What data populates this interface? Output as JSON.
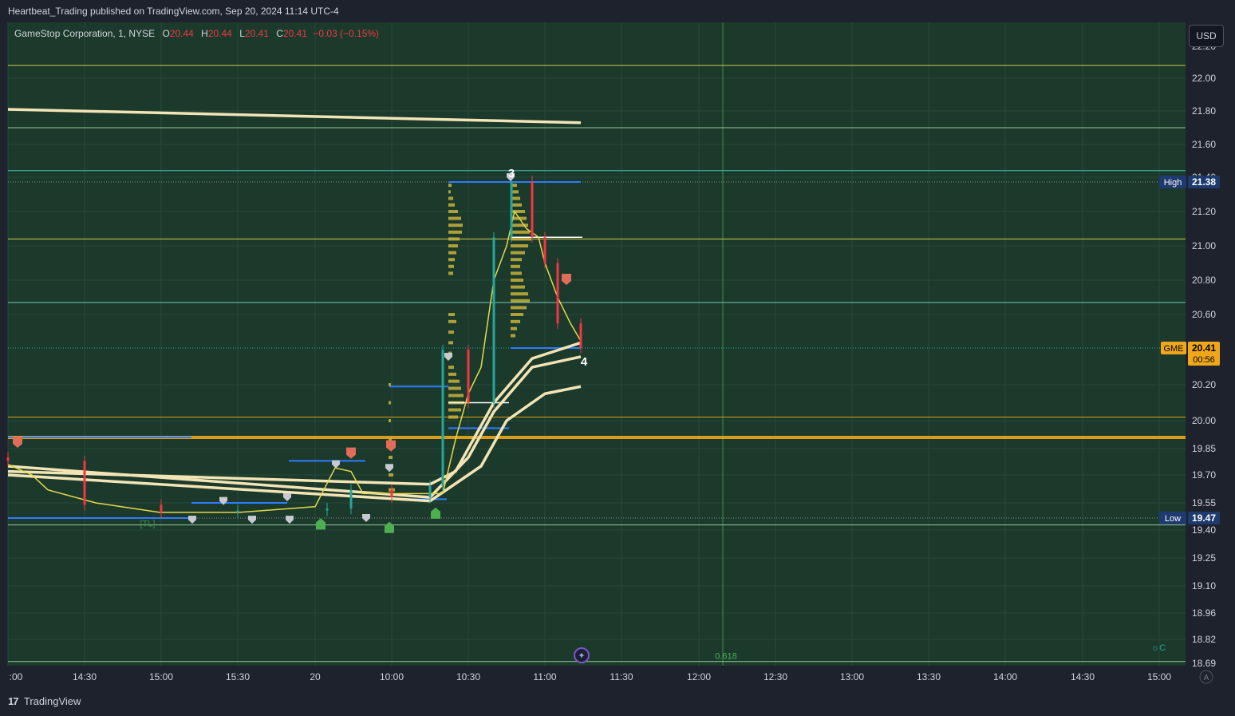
{
  "header": {
    "published_text": "Heartbeat_Trading published on TradingView.com, Sep 20, 2024 11:14 UTC-4"
  },
  "legend": {
    "symbol": "GameStop Corporation, 1, NYSE",
    "open_label": "O",
    "open": "20.44",
    "high_label": "H",
    "high": "20.44",
    "low_label": "L",
    "low": "20.41",
    "close_label": "C",
    "close": "20.41",
    "change": "−0.03 (−0.15%)"
  },
  "currency_button": "USD",
  "footer": {
    "brand": "TradingView"
  },
  "colors": {
    "background": "#1c3a2c",
    "up": "#26a69a",
    "down": "#f23645",
    "yellow": "#e5d84a",
    "cream": "#f3e4b5",
    "orange": "#f0a81a",
    "blue": "#2962ff",
    "volume_profile": "#c8b33c"
  },
  "chart_data": {
    "type": "candlestick",
    "symbol": "GME",
    "price_axis": {
      "tick_labels": [
        "22.00",
        "21.80",
        "21.60",
        "21.40",
        "21.20",
        "21.00",
        "20.80",
        "20.60",
        "20.20",
        "20.00",
        "19.85",
        "19.70",
        "19.55",
        "19.40",
        "19.25",
        "19.10",
        "18.96",
        "18.82",
        "18.69"
      ],
      "top_label_partial": "22.20"
    },
    "time_axis": {
      "tick_labels": [
        ":00",
        "14:30",
        "15:00",
        "15:30",
        "20",
        "10:00",
        "10:30",
        "11:00",
        "11:30",
        "12:00",
        "12:30",
        "13:00",
        "13:30",
        "14:00",
        "14:30",
        "15:00"
      ]
    },
    "price_labels": [
      {
        "label": "High",
        "value": "21.38"
      },
      {
        "label": "GME",
        "value": "20.41",
        "sub": "00:56"
      },
      {
        "label": "Low",
        "value": "19.47"
      }
    ],
    "horizontal_levels": [
      {
        "price": 22.08,
        "color": "#e5d84a"
      },
      {
        "price": 21.7,
        "color": "#a5d6a7"
      },
      {
        "price": 21.44,
        "color": "#4dd0c0"
      },
      {
        "price": 21.04,
        "color": "#e5d84a"
      },
      {
        "price": 20.67,
        "color": "#7fd6c8"
      },
      {
        "price": 20.02,
        "color": "#f0a81a"
      },
      {
        "price": 19.91,
        "color": "#f0a81a",
        "thick": true
      },
      {
        "price": 19.43,
        "color": "#a5d6a7"
      },
      {
        "price": 18.7,
        "color": "#a5d6a7"
      }
    ],
    "annotations": [
      {
        "text": "3",
        "time": "10:47",
        "price": 21.4
      },
      {
        "text": "4",
        "time": "11:18",
        "price": 20.31
      },
      {
        "text": "0.618",
        "time": "12:02",
        "price": 18.7
      },
      {
        "text": "[TL]",
        "time": "14:54",
        "price": 19.42
      }
    ],
    "candles_approx": [
      {
        "time": "13:59",
        "close": 19.78
      },
      {
        "time": "14:30",
        "close": 19.54
      },
      {
        "time": "15:00",
        "close": 19.5
      },
      {
        "time": "15:30",
        "close": 19.51
      },
      {
        "time": "09:35",
        "close": 19.52
      },
      {
        "time": "09:45",
        "close": 19.62
      },
      {
        "time": "10:00",
        "close": 19.58
      },
      {
        "time": "10:15",
        "close": 19.64
      },
      {
        "time": "10:20",
        "close": 20.4
      },
      {
        "time": "10:30",
        "close": 20.1
      },
      {
        "time": "10:40",
        "close": 21.05
      },
      {
        "time": "10:47",
        "close": 21.38
      },
      {
        "time": "10:55",
        "close": 21.05
      },
      {
        "time": "11:00",
        "close": 20.9
      },
      {
        "time": "11:05",
        "close": 20.55
      },
      {
        "time": "11:14",
        "close": 20.41
      }
    ],
    "moving_averages": [
      {
        "color": "#f3e4b5",
        "points": [
          [
            "13:59",
            21.81
          ],
          [
            "11:14",
            21.73
          ]
        ]
      },
      {
        "color": "#f3e4b5",
        "points": [
          [
            "13:59",
            19.72
          ],
          [
            "10:15",
            19.65
          ],
          [
            "10:25",
            19.72
          ],
          [
            "10:40",
            20.1
          ],
          [
            "10:55",
            20.35
          ],
          [
            "11:14",
            20.44
          ]
        ]
      },
      {
        "color": "#f3e4b5",
        "points": [
          [
            "13:59",
            19.75
          ],
          [
            "10:15",
            19.58
          ],
          [
            "10:30",
            19.8
          ],
          [
            "10:40",
            20.05
          ],
          [
            "10:55",
            20.3
          ],
          [
            "11:14",
            20.36
          ]
        ]
      },
      {
        "color": "#f3e4b5",
        "points": [
          [
            "13:59",
            19.7
          ],
          [
            "10:15",
            19.56
          ],
          [
            "10:35",
            19.75
          ],
          [
            "10:45",
            20.0
          ],
          [
            "11:00",
            20.15
          ],
          [
            "11:14",
            20.19
          ]
        ]
      }
    ]
  }
}
